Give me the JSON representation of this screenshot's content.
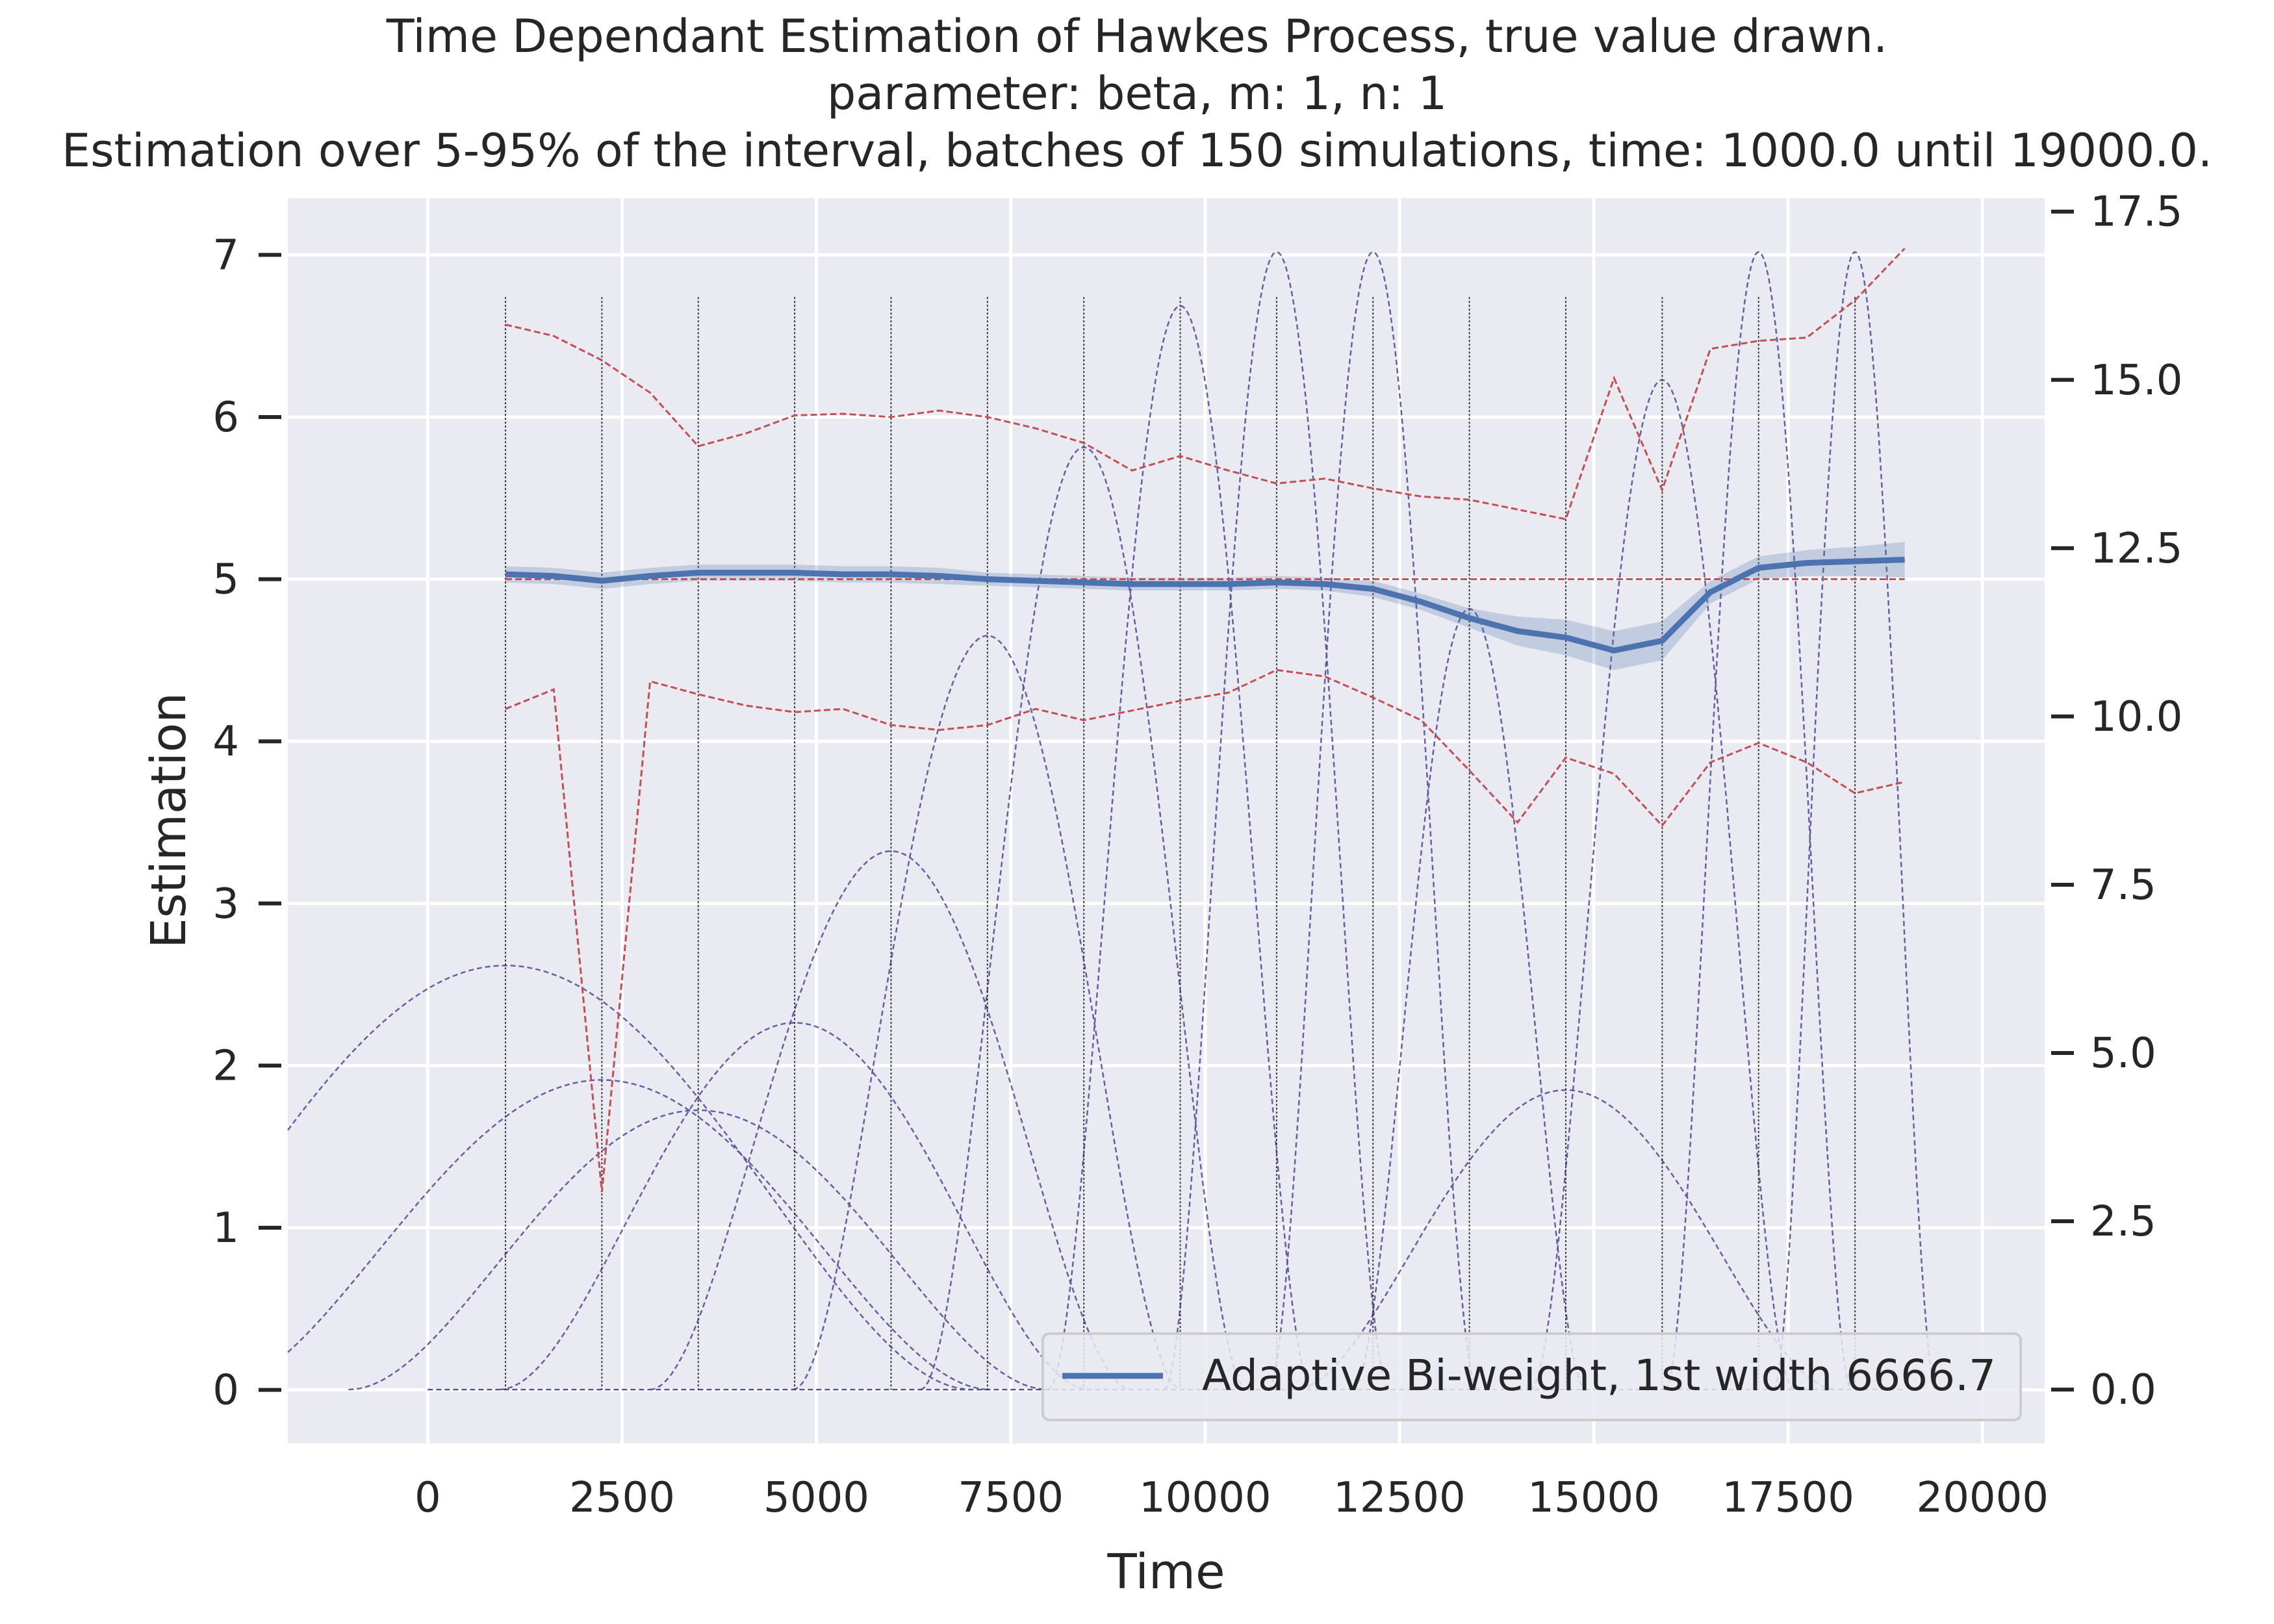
{
  "chart_data": {
    "type": "line",
    "title": [
      "Time Dependant Estimation of Hawkes Process, true value drawn.",
      "parameter: beta, m: 1, n: 1",
      "Estimation over 5-95% of the interval, batches of 150 simulations, time: 1000.0 until 19000.0."
    ],
    "xlabel": "Time",
    "ylabel": "Estimation",
    "xlim": [
      -1800,
      20800
    ],
    "ylim": [
      -0.33,
      7.35
    ],
    "y2lim": [
      -0.8,
      17.7
    ],
    "xticks": [
      0,
      2500,
      5000,
      7500,
      10000,
      12500,
      15000,
      17500,
      20000
    ],
    "yticks": [
      0,
      1,
      2,
      3,
      4,
      5,
      6,
      7
    ],
    "y2ticks": [
      0.0,
      2.5,
      5.0,
      7.5,
      10.0,
      12.5,
      15.0,
      17.5
    ],
    "grid": true,
    "legend_position": "lower-right",
    "colors": {
      "background": "#eaeaf2",
      "grid": "#ffffff",
      "estimate": "#4c72b0",
      "band": "#4c72b0",
      "quantiles": "#c44e52",
      "true_value": "#c44e52",
      "kernels": "#55509a",
      "vlines": "#333333"
    },
    "series": [
      {
        "name": "Adaptive Bi-weight, 1st width 6666.7",
        "style": "solid",
        "x": [
          1000,
          1620,
          2240,
          2860,
          3480,
          4100,
          4720,
          5340,
          5960,
          6580,
          7200,
          7820,
          8440,
          9060,
          9680,
          10300,
          10920,
          11540,
          12160,
          12780,
          13400,
          14020,
          14640,
          15260,
          15880,
          16500,
          17120,
          17740,
          18360,
          19000
        ],
        "y": [
          5.03,
          5.02,
          4.99,
          5.02,
          5.04,
          5.04,
          5.04,
          5.03,
          5.03,
          5.02,
          5.0,
          4.99,
          4.98,
          4.97,
          4.97,
          4.97,
          4.98,
          4.97,
          4.94,
          4.86,
          4.76,
          4.68,
          4.64,
          4.56,
          4.62,
          4.92,
          5.07,
          5.1,
          5.11,
          5.12
        ],
        "band_lower": [
          4.98,
          4.97,
          4.94,
          4.97,
          4.99,
          4.99,
          4.99,
          4.98,
          4.98,
          4.97,
          4.96,
          4.95,
          4.94,
          4.93,
          4.93,
          4.93,
          4.94,
          4.93,
          4.89,
          4.81,
          4.7,
          4.59,
          4.53,
          4.44,
          4.5,
          4.85,
          5.0,
          5.02,
          5.02,
          5.01
        ],
        "band_upper": [
          5.08,
          5.07,
          5.04,
          5.07,
          5.09,
          5.09,
          5.09,
          5.08,
          5.08,
          5.07,
          5.04,
          5.03,
          5.02,
          5.01,
          5.01,
          5.01,
          5.02,
          5.01,
          4.99,
          4.91,
          4.82,
          4.77,
          4.75,
          4.68,
          4.74,
          4.99,
          5.14,
          5.18,
          5.2,
          5.23
        ]
      },
      {
        "style": "dashed",
        "x": [
          1000,
          1620,
          2240,
          2860,
          3480,
          4100,
          4720,
          5340,
          5960,
          6580,
          7200,
          7820,
          8440,
          9060,
          9680,
          10300,
          10920,
          11540,
          12160,
          12780,
          13400,
          14020,
          14640,
          15260,
          15880,
          16500,
          17120,
          17740,
          18360,
          19000
        ],
        "y": [
          6.57,
          6.5,
          6.35,
          6.15,
          5.82,
          5.9,
          6.01,
          6.02,
          6.0,
          6.04,
          6.0,
          5.93,
          5.84,
          5.67,
          5.76,
          5.67,
          5.59,
          5.62,
          5.56,
          5.51,
          5.49,
          5.43,
          5.37,
          6.24,
          5.55,
          6.42,
          6.47,
          6.49,
          6.72,
          7.04
        ]
      },
      {
        "style": "dashed",
        "x": [
          1000,
          1620,
          2240,
          2860,
          3480,
          4100,
          4720,
          5340,
          5960,
          6580,
          7200,
          7820,
          8440,
          9060,
          9680,
          10300,
          10920,
          11540,
          12160,
          12780,
          13400,
          14020,
          14640,
          15260,
          15880,
          16500,
          17120,
          17740,
          18360,
          19000
        ],
        "y": [
          4.2,
          4.32,
          1.22,
          4.37,
          4.29,
          4.22,
          4.18,
          4.2,
          4.1,
          4.07,
          4.1,
          4.2,
          4.13,
          4.19,
          4.25,
          4.3,
          4.44,
          4.4,
          4.27,
          4.13,
          3.82,
          3.5,
          3.9,
          3.8,
          3.48,
          3.87,
          3.99,
          3.87,
          3.68,
          3.75
        ]
      },
      {
        "style": "dashed",
        "x": [
          1000,
          19000
        ],
        "y": [
          5.0,
          5.0
        ]
      }
    ],
    "kernels_axis": "secondary",
    "kernels": [
      {
        "center": 1000,
        "half_width": 6000,
        "height": 6.3
      },
      {
        "center": 2240,
        "half_width": 5000,
        "height": 4.6
      },
      {
        "center": 3480,
        "half_width": 4500,
        "height": 4.15
      },
      {
        "center": 4720,
        "half_width": 3800,
        "height": 5.45
      },
      {
        "center": 5960,
        "half_width": 3100,
        "height": 8.0
      },
      {
        "center": 7200,
        "half_width": 2500,
        "height": 11.2
      },
      {
        "center": 8440,
        "half_width": 2100,
        "height": 14.0
      },
      {
        "center": 9680,
        "half_width": 1700,
        "height": 16.1
      },
      {
        "center": 10920,
        "half_width": 1450,
        "height": 16.9
      },
      {
        "center": 12160,
        "half_width": 1350,
        "height": 16.9
      },
      {
        "center": 13400,
        "half_width": 1500,
        "height": 11.6
      },
      {
        "center": 14640,
        "half_width": 3500,
        "height": 4.45
      },
      {
        "center": 15880,
        "half_width": 1700,
        "height": 15.0
      },
      {
        "center": 17120,
        "half_width": 1200,
        "height": 16.9
      },
      {
        "center": 18360,
        "half_width": 1050,
        "height": 16.9
      }
    ],
    "vlines": [
      1000,
      2240,
      3480,
      4720,
      5960,
      7200,
      8440,
      9680,
      10920,
      12160,
      13400,
      14640,
      15880,
      17120,
      18360
    ]
  }
}
